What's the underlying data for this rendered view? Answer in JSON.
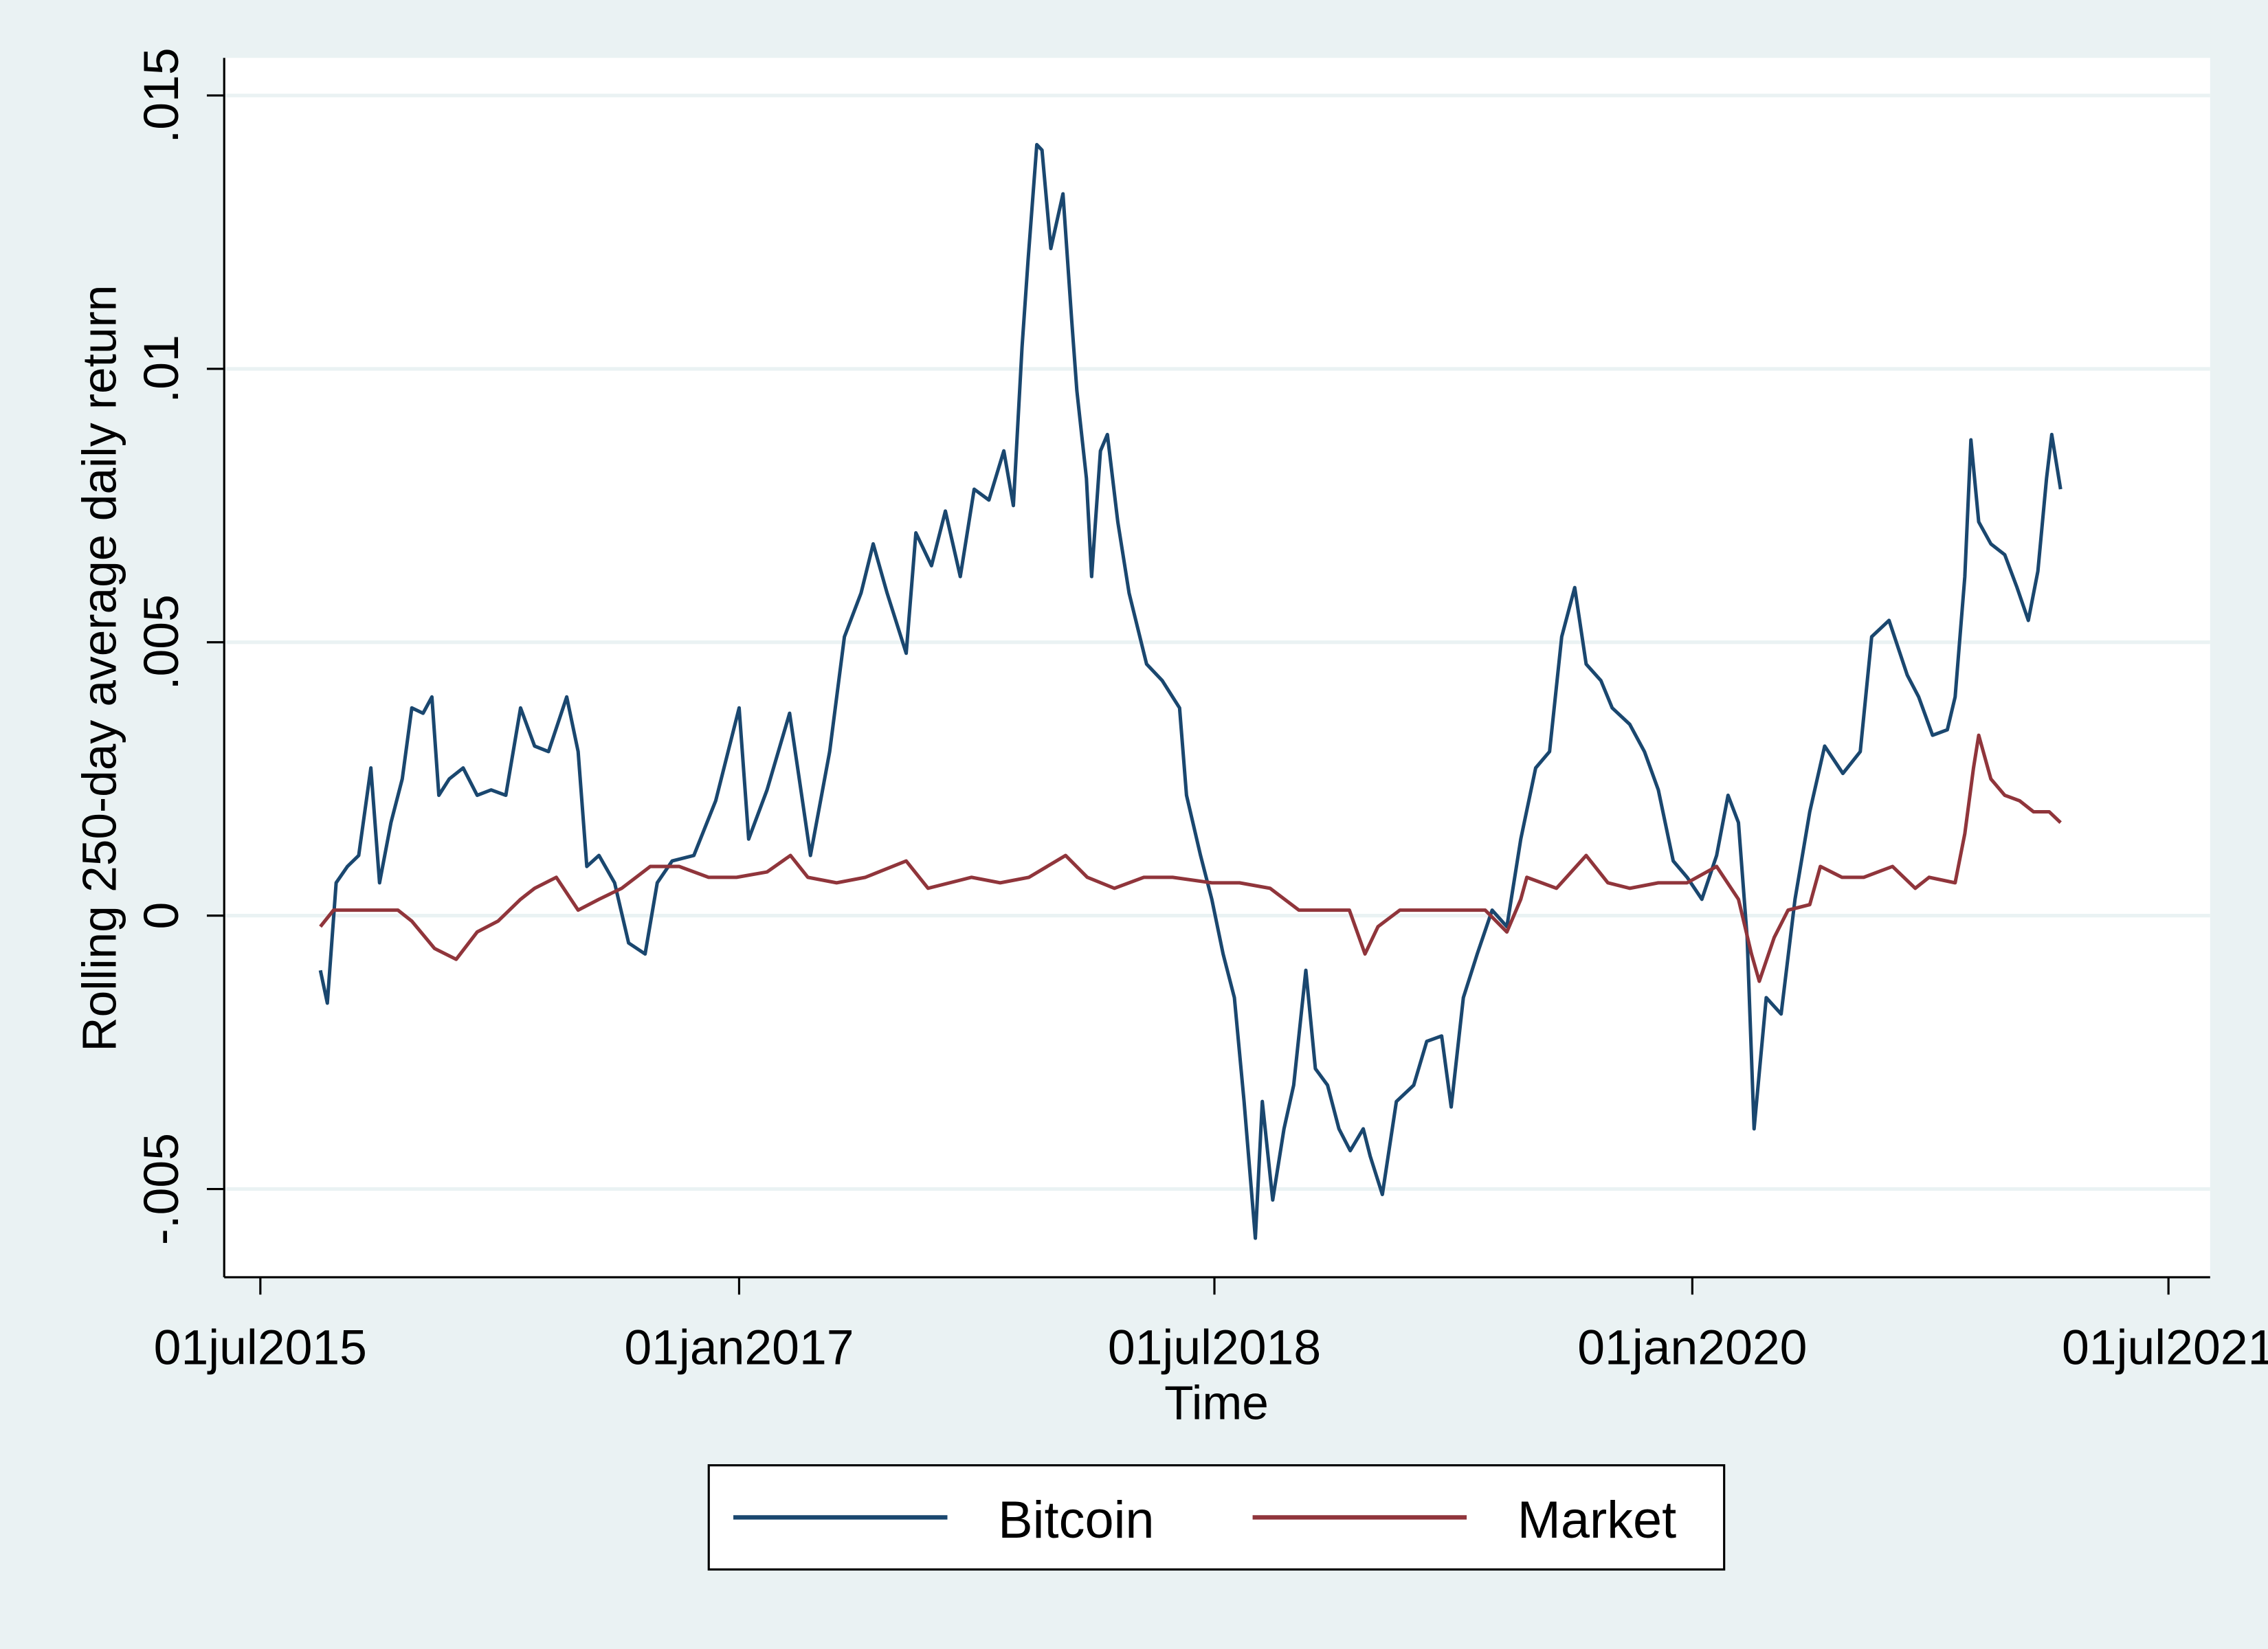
{
  "chart_data": {
    "type": "line",
    "title": "",
    "xlabel": "Time",
    "ylabel": "Rolling 250-day average daily return",
    "xlim": [
      "2015-07-01",
      "2021-07-01"
    ],
    "ylim": [
      -0.0065,
      0.0157
    ],
    "x_ticks": [
      {
        "date": "2015-07-01",
        "label": "01jul2015"
      },
      {
        "date": "2017-01-01",
        "label": "01jan2017"
      },
      {
        "date": "2018-07-01",
        "label": "01jul2018"
      },
      {
        "date": "2020-01-01",
        "label": "01jan2020"
      },
      {
        "date": "2021-07-01",
        "label": "01jul2021"
      }
    ],
    "y_ticks": [
      {
        "value": -0.005,
        "label": "-.005"
      },
      {
        "value": 0,
        "label": "0"
      },
      {
        "value": 0.005,
        "label": ".005"
      },
      {
        "value": 0.01,
        "label": ".01"
      },
      {
        "value": 0.015,
        "label": ".015"
      }
    ],
    "grid": true,
    "legend_position": "bottom",
    "background_color": "#eaf2f3",
    "series": [
      {
        "name": "Bitcoin",
        "color": "#1a476f",
        "points": [
          [
            "2015-09-08",
            -0.001
          ],
          [
            "2015-09-16",
            -0.0016
          ],
          [
            "2015-09-26",
            0.0006
          ],
          [
            "2015-10-09",
            0.0009
          ],
          [
            "2015-10-22",
            0.0011
          ],
          [
            "2015-11-05",
            0.0027
          ],
          [
            "2015-11-15",
            0.0006
          ],
          [
            "2015-11-28",
            0.0017
          ],
          [
            "2015-12-11",
            0.0025
          ],
          [
            "2015-12-22",
            0.0038
          ],
          [
            "2016-01-04",
            0.0037
          ],
          [
            "2016-01-14",
            0.004
          ],
          [
            "2016-01-22",
            0.0022
          ],
          [
            "2016-02-03",
            0.0025
          ],
          [
            "2016-02-19",
            0.0027
          ],
          [
            "2016-03-06",
            0.0022
          ],
          [
            "2016-03-22",
            0.0023
          ],
          [
            "2016-04-08",
            0.0022
          ],
          [
            "2016-04-25",
            0.0038
          ],
          [
            "2016-05-11",
            0.0031
          ],
          [
            "2016-05-27",
            0.003
          ],
          [
            "2016-06-17",
            0.004
          ],
          [
            "2016-06-30",
            0.003
          ],
          [
            "2016-07-10",
            0.0009
          ],
          [
            "2016-07-24",
            0.0011
          ],
          [
            "2016-08-11",
            0.0006
          ],
          [
            "2016-08-27",
            -0.0005
          ],
          [
            "2016-09-15",
            -0.0007
          ],
          [
            "2016-09-29",
            0.0006
          ],
          [
            "2016-10-16",
            0.001
          ],
          [
            "2016-11-10",
            0.0011
          ],
          [
            "2016-12-05",
            0.0021
          ],
          [
            "2017-01-01",
            0.0038
          ],
          [
            "2017-01-12",
            0.0014
          ],
          [
            "2017-02-02",
            0.0023
          ],
          [
            "2017-02-28",
            0.0037
          ],
          [
            "2017-03-13",
            0.0023
          ],
          [
            "2017-03-24",
            0.0011
          ],
          [
            "2017-04-15",
            0.003
          ],
          [
            "2017-05-02",
            0.0051
          ],
          [
            "2017-05-21",
            0.0059
          ],
          [
            "2017-06-04",
            0.0068
          ],
          [
            "2017-06-20",
            0.0059
          ],
          [
            "2017-07-12",
            0.0048
          ],
          [
            "2017-07-23",
            0.007
          ],
          [
            "2017-08-10",
            0.0064
          ],
          [
            "2017-08-26",
            0.0074
          ],
          [
            "2017-09-12",
            0.0062
          ],
          [
            "2017-09-28",
            0.0078
          ],
          [
            "2017-10-15",
            0.0076
          ],
          [
            "2017-11-01",
            0.0085
          ],
          [
            "2017-11-12",
            0.0075
          ],
          [
            "2017-11-22",
            0.0104
          ],
          [
            "2017-11-29",
            0.012
          ],
          [
            "2017-12-09",
            0.0141
          ],
          [
            "2017-12-15",
            0.014
          ],
          [
            "2017-12-25",
            0.0122
          ],
          [
            "2018-01-08",
            0.0132
          ],
          [
            "2018-01-18",
            0.0109
          ],
          [
            "2018-01-24",
            0.0096
          ],
          [
            "2018-02-04",
            0.008
          ],
          [
            "2018-02-10",
            0.0062
          ],
          [
            "2018-02-20",
            0.0085
          ],
          [
            "2018-02-28",
            0.0088
          ],
          [
            "2018-03-12",
            0.0072
          ],
          [
            "2018-03-25",
            0.0059
          ],
          [
            "2018-04-14",
            0.0046
          ],
          [
            "2018-05-02",
            0.0043
          ],
          [
            "2018-05-22",
            0.0038
          ],
          [
            "2018-05-30",
            0.0022
          ],
          [
            "2018-06-15",
            0.0011
          ],
          [
            "2018-06-28",
            0.0003
          ],
          [
            "2018-07-11",
            -0.0007
          ],
          [
            "2018-07-24",
            -0.0015
          ],
          [
            "2018-08-04",
            -0.0034
          ],
          [
            "2018-08-17",
            -0.0059
          ],
          [
            "2018-08-25",
            -0.0034
          ],
          [
            "2018-09-06",
            -0.0052
          ],
          [
            "2018-09-19",
            -0.0039
          ],
          [
            "2018-09-30",
            -0.0031
          ],
          [
            "2018-10-14",
            -0.001
          ],
          [
            "2018-10-25",
            -0.0028
          ],
          [
            "2018-11-08",
            -0.0031
          ],
          [
            "2018-11-21",
            -0.0039
          ],
          [
            "2018-12-04",
            -0.0043
          ],
          [
            "2018-12-19",
            -0.0039
          ],
          [
            "2018-12-27",
            -0.0044
          ],
          [
            "2019-01-10",
            -0.0051
          ],
          [
            "2019-01-26",
            -0.0034
          ],
          [
            "2019-02-15",
            -0.0031
          ],
          [
            "2019-03-02",
            -0.0023
          ],
          [
            "2019-03-19",
            -0.0022
          ],
          [
            "2019-03-30",
            -0.0035
          ],
          [
            "2019-04-13",
            -0.0015
          ],
          [
            "2019-04-29",
            -0.0007
          ],
          [
            "2019-05-16",
            0.0001
          ],
          [
            "2019-06-02",
            -0.0002
          ],
          [
            "2019-06-18",
            0.0014
          ],
          [
            "2019-07-05",
            0.0027
          ],
          [
            "2019-07-21",
            0.003
          ],
          [
            "2019-08-04",
            0.0051
          ],
          [
            "2019-08-19",
            0.006
          ],
          [
            "2019-09-01",
            0.0046
          ],
          [
            "2019-09-18",
            0.0043
          ],
          [
            "2019-10-01",
            0.0038
          ],
          [
            "2019-10-21",
            0.0035
          ],
          [
            "2019-11-07",
            0.003
          ],
          [
            "2019-11-23",
            0.0023
          ],
          [
            "2019-12-10",
            0.001
          ],
          [
            "2019-12-26",
            0.0007
          ],
          [
            "2020-01-12",
            0.0003
          ],
          [
            "2020-01-29",
            0.0011
          ],
          [
            "2020-02-11",
            0.0022
          ],
          [
            "2020-02-23",
            0.0017
          ],
          [
            "2020-03-04",
            -0.0004
          ],
          [
            "2020-03-12",
            -0.0039
          ],
          [
            "2020-03-26",
            -0.0015
          ],
          [
            "2020-04-12",
            -0.0018
          ],
          [
            "2020-04-28",
            0.0003
          ],
          [
            "2020-05-15",
            0.0019
          ],
          [
            "2020-06-01",
            0.0031
          ],
          [
            "2020-06-22",
            0.0026
          ],
          [
            "2020-07-12",
            0.003
          ],
          [
            "2020-07-25",
            0.0051
          ],
          [
            "2020-08-14",
            0.0054
          ],
          [
            "2020-09-04",
            0.0044
          ],
          [
            "2020-09-17",
            0.004
          ],
          [
            "2020-10-03",
            0.0033
          ],
          [
            "2020-10-20",
            0.0034
          ],
          [
            "2020-10-29",
            0.004
          ],
          [
            "2020-11-09",
            0.0062
          ],
          [
            "2020-11-16",
            0.0087
          ],
          [
            "2020-11-25",
            0.0072
          ],
          [
            "2020-12-09",
            0.0068
          ],
          [
            "2020-12-25",
            0.0066
          ],
          [
            "2021-01-08",
            0.006
          ],
          [
            "2021-01-21",
            0.0054
          ],
          [
            "2021-02-01",
            0.0063
          ],
          [
            "2021-02-11",
            0.008
          ],
          [
            "2021-02-17",
            0.0088
          ],
          [
            "2021-02-27",
            0.0078
          ]
        ]
      },
      {
        "name": "Market",
        "color": "#90353b",
        "points": [
          [
            "2015-09-08",
            -0.0002
          ],
          [
            "2015-09-23",
            0.0001
          ],
          [
            "2015-11-11",
            0.0001
          ],
          [
            "2015-12-06",
            0.0001
          ],
          [
            "2015-12-22",
            -0.0001
          ],
          [
            "2016-01-17",
            -0.0006
          ],
          [
            "2016-02-11",
            -0.0008
          ],
          [
            "2016-03-06",
            -0.0003
          ],
          [
            "2016-03-30",
            -0.0001
          ],
          [
            "2016-04-25",
            0.0003
          ],
          [
            "2016-05-11",
            0.0005
          ],
          [
            "2016-06-05",
            0.0007
          ],
          [
            "2016-06-30",
            0.0001
          ],
          [
            "2016-07-24",
            0.0003
          ],
          [
            "2016-08-19",
            0.0005
          ],
          [
            "2016-09-21",
            0.0009
          ],
          [
            "2016-10-24",
            0.0009
          ],
          [
            "2016-11-27",
            0.0007
          ],
          [
            "2016-12-29",
            0.0007
          ],
          [
            "2017-02-02",
            0.0008
          ],
          [
            "2017-03-01",
            0.0011
          ],
          [
            "2017-03-21",
            0.0007
          ],
          [
            "2017-04-23",
            0.0006
          ],
          [
            "2017-05-26",
            0.0007
          ],
          [
            "2017-07-12",
            0.001
          ],
          [
            "2017-08-06",
            0.0005
          ],
          [
            "2017-09-25",
            0.0007
          ],
          [
            "2017-10-28",
            0.0006
          ],
          [
            "2017-11-30",
            0.0007
          ],
          [
            "2018-01-11",
            0.0011
          ],
          [
            "2018-02-05",
            0.0007
          ],
          [
            "2018-03-08",
            0.0005
          ],
          [
            "2018-04-11",
            0.0007
          ],
          [
            "2018-05-14",
            0.0007
          ],
          [
            "2018-06-28",
            0.0006
          ],
          [
            "2018-07-30",
            0.0006
          ],
          [
            "2018-09-03",
            0.0005
          ],
          [
            "2018-10-06",
            0.0001
          ],
          [
            "2018-11-08",
            0.0001
          ],
          [
            "2018-12-03",
            0.0001
          ],
          [
            "2018-12-21",
            -0.0007
          ],
          [
            "2019-01-05",
            -0.0002
          ],
          [
            "2019-01-30",
            0.0001
          ],
          [
            "2019-03-02",
            0.0001
          ],
          [
            "2019-04-05",
            0.0001
          ],
          [
            "2019-05-08",
            0.0001
          ],
          [
            "2019-06-02",
            -0.0003
          ],
          [
            "2019-06-18",
            0.0003
          ],
          [
            "2019-06-25",
            0.0007
          ],
          [
            "2019-07-29",
            0.0005
          ],
          [
            "2019-09-01",
            0.0011
          ],
          [
            "2019-09-26",
            0.0006
          ],
          [
            "2019-10-21",
            0.0005
          ],
          [
            "2019-11-23",
            0.0006
          ],
          [
            "2019-12-26",
            0.0006
          ],
          [
            "2020-01-29",
            0.0009
          ],
          [
            "2020-02-23",
            0.0003
          ],
          [
            "2020-03-09",
            -0.0007
          ],
          [
            "2020-03-18",
            -0.0012
          ],
          [
            "2020-04-04",
            -0.0004
          ],
          [
            "2020-04-20",
            0.0001
          ],
          [
            "2020-05-15",
            0.0002
          ],
          [
            "2020-05-27",
            0.0009
          ],
          [
            "2020-06-21",
            0.0007
          ],
          [
            "2020-07-16",
            0.0007
          ],
          [
            "2020-08-18",
            0.0009
          ],
          [
            "2020-09-13",
            0.0005
          ],
          [
            "2020-09-29",
            0.0007
          ],
          [
            "2020-10-29",
            0.0006
          ],
          [
            "2020-11-09",
            0.0015
          ],
          [
            "2020-11-19",
            0.0027
          ],
          [
            "2020-11-25",
            0.0033
          ],
          [
            "2020-12-09",
            0.0025
          ],
          [
            "2020-12-25",
            0.0022
          ],
          [
            "2021-01-11",
            0.0021
          ],
          [
            "2021-01-27",
            0.0019
          ],
          [
            "2021-02-14",
            0.0019
          ],
          [
            "2021-02-27",
            0.0017
          ]
        ]
      }
    ]
  }
}
